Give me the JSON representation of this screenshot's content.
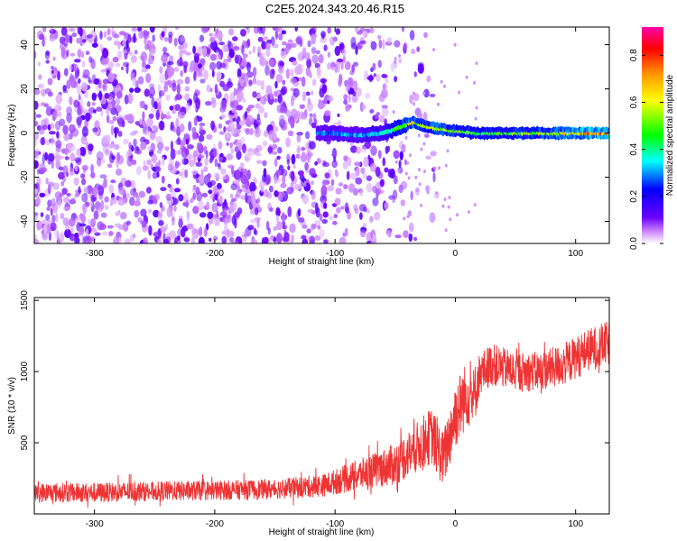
{
  "title": "C2E5.2024.343.20.46.R15",
  "chart_data": [
    {
      "type": "heatmap",
      "xlabel": "Height of straight line (km)",
      "ylabel": "Frequency (Hz)",
      "xlim": [
        -350,
        128
      ],
      "ylim": [
        -50,
        48
      ],
      "xticks": [
        -300,
        -200,
        -100,
        0,
        100
      ],
      "xtick_labels": [
        "-300",
        "-200",
        "-100",
        "0",
        "100"
      ],
      "yticks": [
        -40,
        -20,
        0,
        20,
        40
      ],
      "ytick_labels": [
        "-40",
        "-20",
        "0",
        "20",
        "40"
      ],
      "grid": false,
      "colorbar": {
        "label": "Normalized spectral amplitude",
        "range": [
          0.0,
          0.92
        ],
        "ticks": [
          0.0,
          0.2,
          0.4,
          0.6,
          0.8
        ],
        "tick_labels": [
          "0.0",
          "0.2",
          "0.4",
          "0.6",
          "0.8"
        ],
        "colors": [
          "#ffffff",
          "#c87cff",
          "#6a00ff",
          "#0000ff",
          "#00ffff",
          "#00ff00",
          "#ffff00",
          "#ff9900",
          "#ff0000",
          "#ff00aa"
        ]
      },
      "signal_track": {
        "x": [
          -115,
          -100,
          -80,
          -60,
          -45,
          -35,
          -25,
          -15,
          0,
          20,
          60,
          100,
          128
        ],
        "frequency": [
          0,
          0,
          -1,
          0,
          3,
          5,
          3,
          2,
          1,
          0,
          0,
          0,
          0
        ],
        "peak_amplitude": [
          0.3,
          0.35,
          0.35,
          0.4,
          0.6,
          0.7,
          0.6,
          0.7,
          0.6,
          0.55,
          0.6,
          0.75,
          0.85
        ]
      },
      "noise_region": {
        "x_range": [
          -350,
          -50
        ],
        "amplitude": 0.1
      }
    },
    {
      "type": "line",
      "xlabel": "Height of straight line (km)",
      "ylabel": "SNR (10 * v/v)",
      "xlim": [
        -350,
        128
      ],
      "ylim": [
        0,
        1520
      ],
      "xticks": [
        -300,
        -200,
        -100,
        0,
        100
      ],
      "xtick_labels": [
        "-300",
        "-200",
        "-100",
        "0",
        "100"
      ],
      "yticks": [
        500,
        1000,
        1500
      ],
      "ytick_labels": [
        "500",
        "1000",
        "1500"
      ],
      "grid": false,
      "series": [
        {
          "color": "#ee3333",
          "x": [
            -350,
            -300,
            -250,
            -200,
            -150,
            -110,
            -90,
            -70,
            -50,
            -30,
            -20,
            -10,
            0,
            10,
            15,
            20,
            30,
            50,
            70,
            90,
            110,
            128
          ],
          "mean": [
            150,
            150,
            160,
            165,
            175,
            200,
            250,
            300,
            350,
            480,
            550,
            380,
            700,
            850,
            800,
            980,
            1050,
            1000,
            1000,
            1050,
            1150,
            1200
          ],
          "spread": [
            70,
            70,
            70,
            70,
            70,
            80,
            100,
            120,
            150,
            180,
            200,
            200,
            250,
            230,
            230,
            150,
            150,
            140,
            140,
            150,
            150,
            160
          ]
        }
      ]
    }
  ]
}
